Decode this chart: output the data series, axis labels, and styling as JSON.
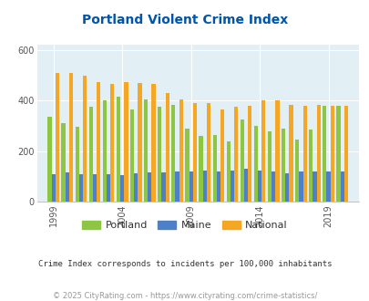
{
  "title": "Portland Violent Crime Index",
  "years": [
    1999,
    2000,
    2001,
    2002,
    2003,
    2004,
    2005,
    2006,
    2007,
    2008,
    2009,
    2010,
    2011,
    2012,
    2013,
    2014,
    2015,
    2016,
    2017,
    2018,
    2019,
    2020
  ],
  "portland": [
    335,
    310,
    295,
    375,
    400,
    415,
    365,
    405,
    375,
    385,
    290,
    260,
    265,
    240,
    325,
    300,
    280,
    290,
    245,
    285,
    380,
    380
  ],
  "maine": [
    110,
    115,
    110,
    110,
    110,
    105,
    112,
    115,
    115,
    120,
    120,
    122,
    120,
    125,
    130,
    125,
    120,
    112,
    118,
    120,
    118,
    118
  ],
  "national": [
    510,
    510,
    500,
    475,
    465,
    473,
    470,
    465,
    430,
    405,
    390,
    390,
    365,
    375,
    380,
    400,
    400,
    385,
    380,
    385,
    380,
    380
  ],
  "portland_color": "#8DC641",
  "maine_color": "#4D80C8",
  "national_color": "#F5A623",
  "bg_color": "#E2EFF5",
  "title_color": "#0055AA",
  "subtitle_color": "#333333",
  "footer_color": "#999999",
  "ylim": [
    0,
    620
  ],
  "yticks": [
    0,
    200,
    400,
    600
  ],
  "xtick_labels": [
    "1999",
    "2004",
    "2009",
    "2014",
    "2019"
  ],
  "xtick_positions": [
    1999,
    2004,
    2009,
    2014,
    2019
  ],
  "subtitle": "Crime Index corresponds to incidents per 100,000 inhabitants",
  "footer": "© 2025 CityRating.com - https://www.cityrating.com/crime-statistics/",
  "legend_labels": [
    "Portland",
    "Maine",
    "National"
  ]
}
